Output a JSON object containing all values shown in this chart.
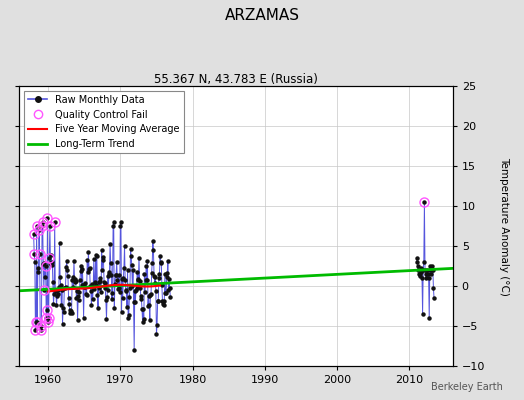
{
  "title": "ARZAMAS",
  "subtitle": "55.367 N, 43.783 E (Russia)",
  "ylabel": "Temperature Anomaly (°C)",
  "watermark": "Berkeley Earth",
  "xlim": [
    1956,
    2016
  ],
  "ylim": [
    -10,
    25
  ],
  "yticks_left": [
    -10,
    -5,
    0,
    5,
    10,
    15,
    20,
    25
  ],
  "yticks_right": [
    -10,
    -5,
    0,
    5,
    10,
    15,
    20,
    25
  ],
  "xticks": [
    1960,
    1970,
    1980,
    1990,
    2000,
    2010
  ],
  "bg_color": "#e0e0e0",
  "plot_bg_color": "#ffffff",
  "raw_line_color": "#5555dd",
  "raw_dot_color": "#111111",
  "qc_fail_color": "#ff55ff",
  "moving_avg_color": "#ff0000",
  "trend_color": "#00bb00",
  "trend_x": [
    1956,
    2016
  ],
  "trend_y": [
    -0.6,
    2.2
  ],
  "moving_avg_x_start": 1960.0,
  "moving_avg_x_end": 1976.0
}
